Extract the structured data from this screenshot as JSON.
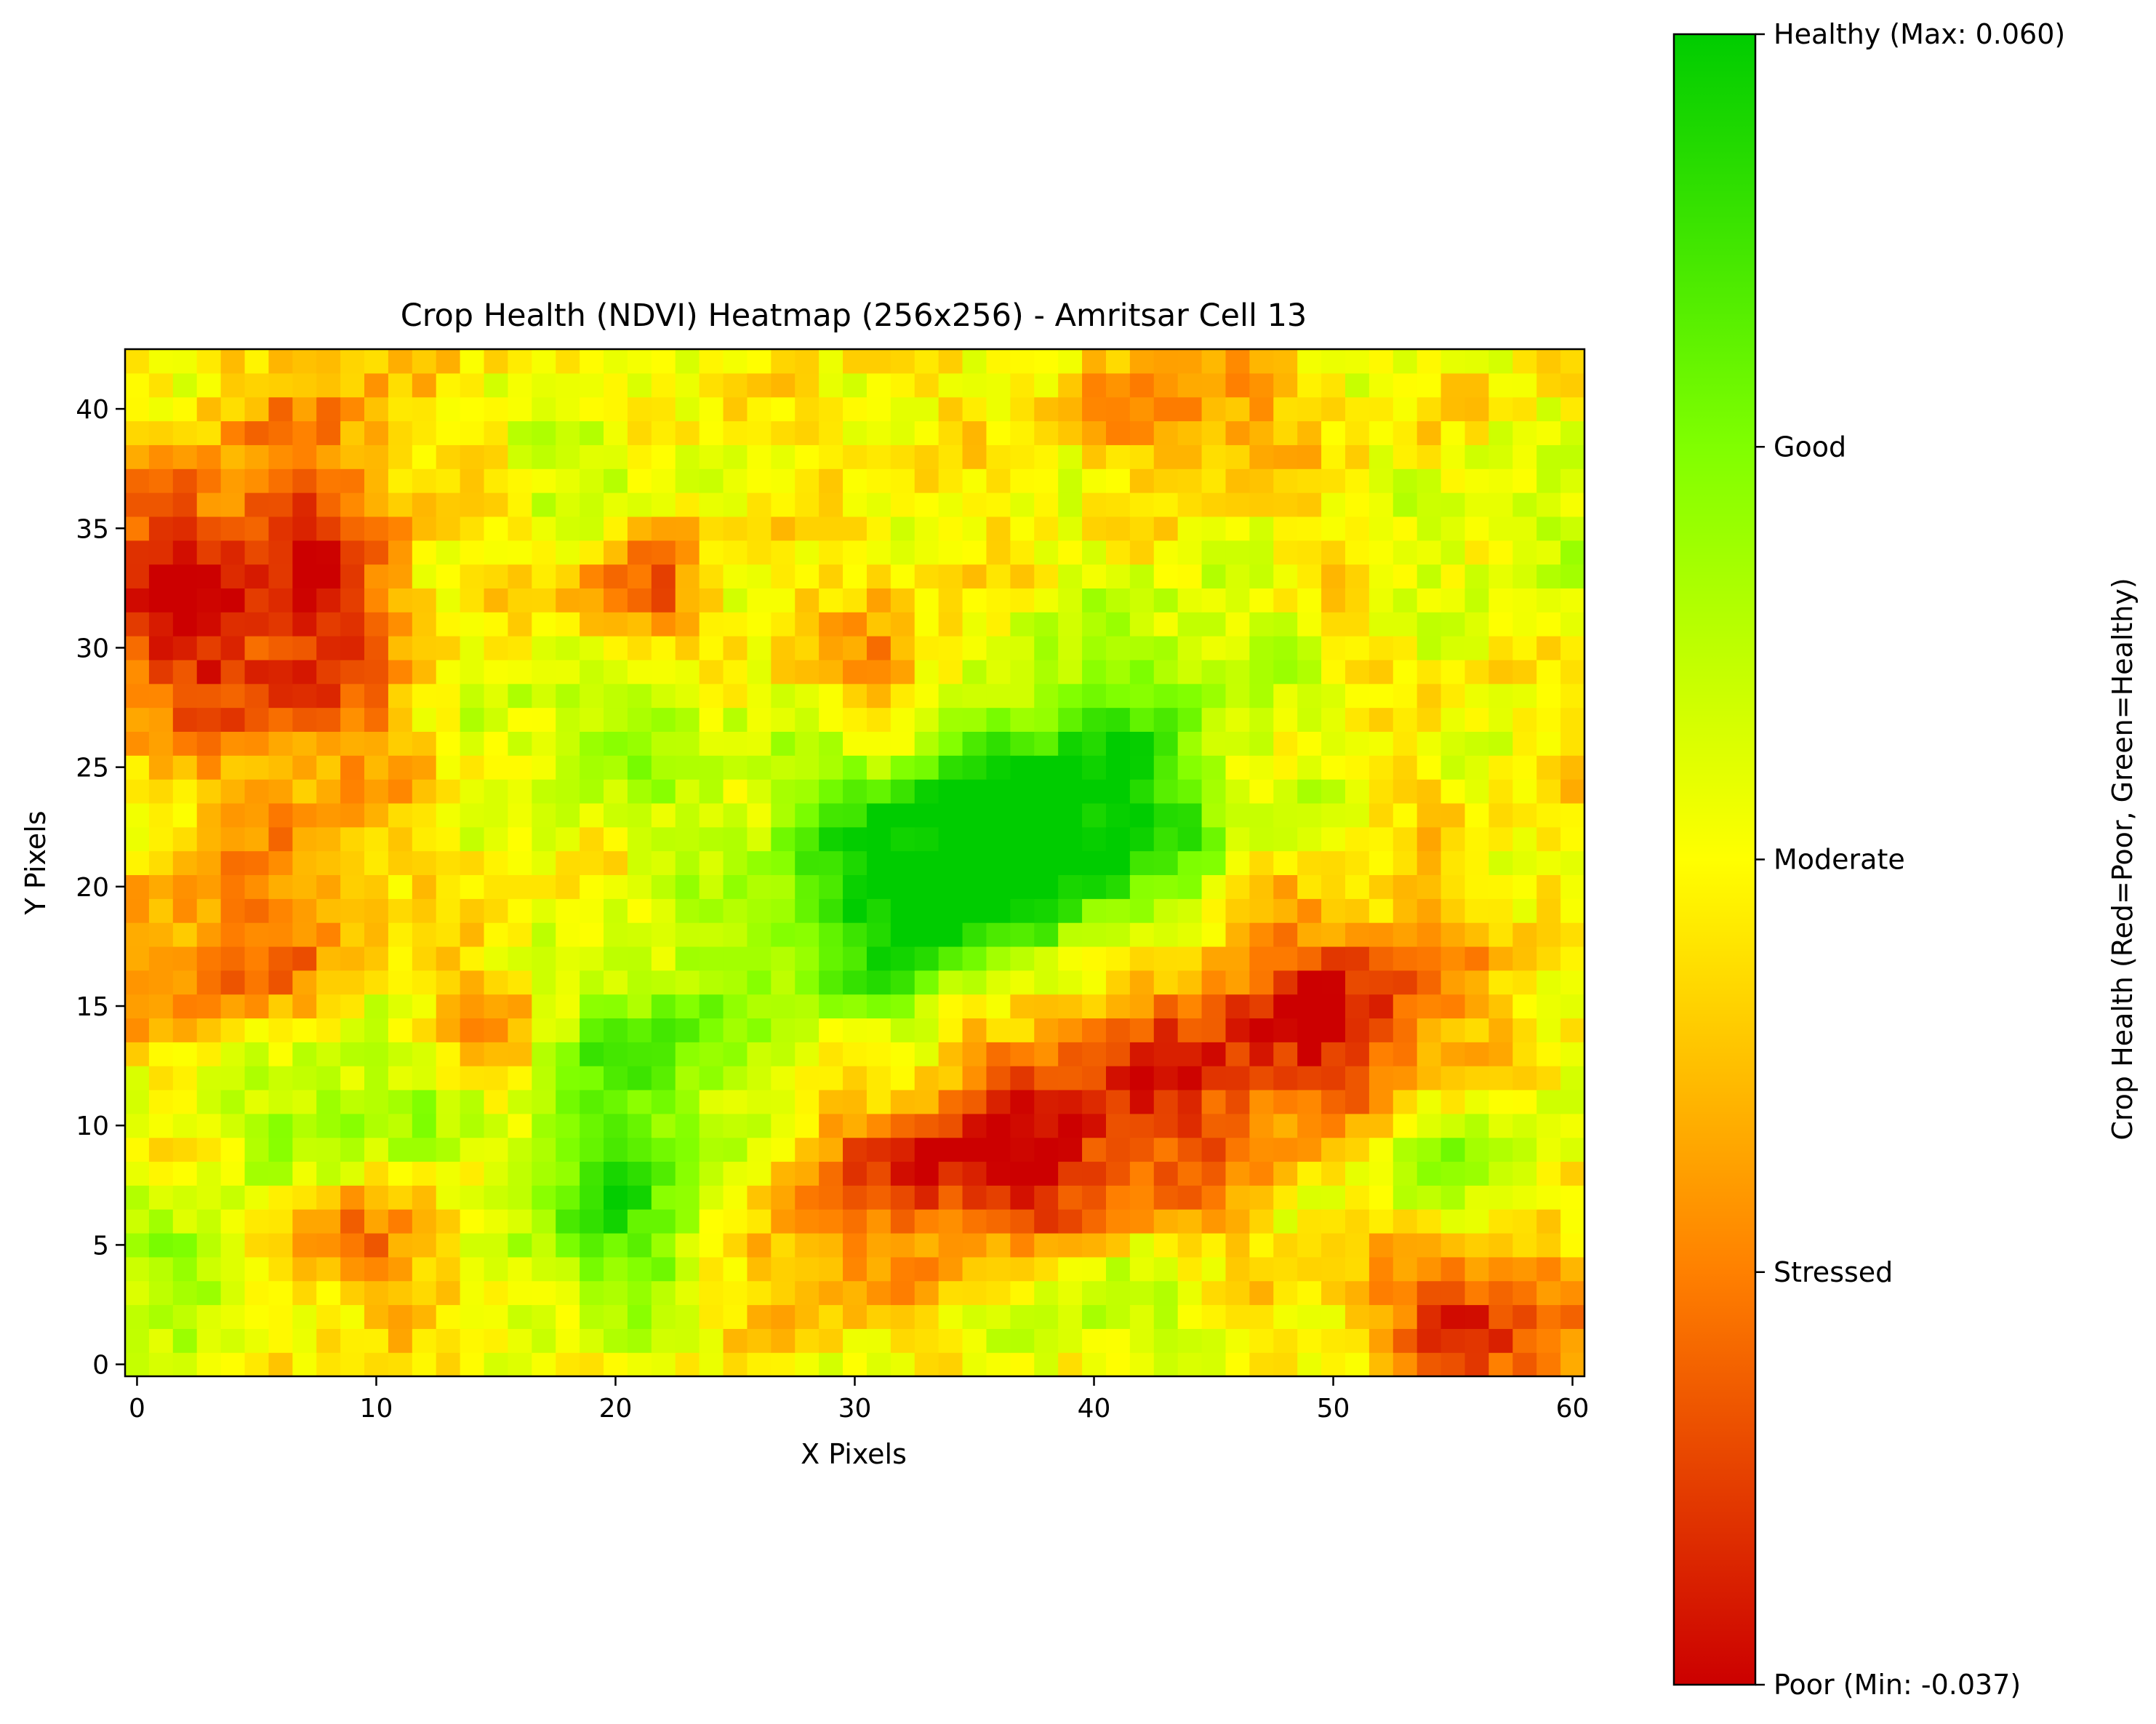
{
  "chart_data": {
    "type": "heatmap",
    "title": "Crop Health (NDVI) Heatmap (256x256) - Amritsar Cell 13",
    "xlabel": "X Pixels",
    "ylabel": "Y Pixels",
    "xlim": [
      -0.5,
      60.5
    ],
    "ylim": [
      -0.5,
      42.5
    ],
    "x_ticks": [
      0,
      10,
      20,
      30,
      40,
      50,
      60
    ],
    "y_ticks": [
      0,
      5,
      10,
      15,
      20,
      25,
      30,
      35,
      40
    ],
    "grid": false,
    "colormap": {
      "stops": [
        "#cc0000",
        "#ff8000",
        "#ffff00",
        "#80ff00",
        "#00cc00"
      ],
      "vmin": -0.037,
      "vmax": 0.06
    },
    "colorbar": {
      "label": "Crop Health (Red=Poor, Green=Healthy)",
      "ticks": [
        {
          "fraction": 0.0,
          "label": "Poor (Min: -0.037)"
        },
        {
          "fraction": 0.25,
          "label": "Stressed"
        },
        {
          "fraction": 0.5,
          "label": "Moderate"
        },
        {
          "fraction": 0.75,
          "label": "Good"
        },
        {
          "fraction": 1.0,
          "label": "Healthy (Max: 0.060)"
        }
      ]
    },
    "regions": [
      {
        "x": 36,
        "y": 22,
        "sx": 5.5,
        "sy": 3.5,
        "level": 0.97
      },
      {
        "x": 31,
        "y": 18,
        "sx": 4,
        "sy": 4,
        "level": 0.8
      },
      {
        "x": 41,
        "y": 24,
        "sx": 3.5,
        "sy": 3,
        "level": 0.75
      },
      {
        "x": 20,
        "y": 6,
        "sx": 3,
        "sy": 3,
        "level": 0.85
      },
      {
        "x": 21,
        "y": 13,
        "sx": 3,
        "sy": 3,
        "level": 0.8
      },
      {
        "x": 8,
        "y": 11,
        "sx": 4,
        "sy": 2.5,
        "level": 0.72
      },
      {
        "x": 2,
        "y": 4,
        "sx": 2.5,
        "sy": 2,
        "level": 0.72
      },
      {
        "x": 20,
        "y": 27,
        "sx": 4,
        "sy": 3,
        "level": 0.68
      },
      {
        "x": 42,
        "y": 30,
        "sx": 5,
        "sy": 2.5,
        "level": 0.62
      },
      {
        "x": 19,
        "y": 38,
        "sx": 2,
        "sy": 2,
        "level": 0.65
      },
      {
        "x": 55,
        "y": 8,
        "sx": 3,
        "sy": 2.5,
        "level": 0.7
      },
      {
        "x": 41,
        "y": 2,
        "sx": 3,
        "sy": 2,
        "level": 0.65
      },
      {
        "x": 58,
        "y": 34,
        "sx": 3,
        "sy": 3,
        "level": 0.6
      },
      {
        "x": 2,
        "y": 32,
        "sx": 3,
        "sy": 4,
        "level": 0.0
      },
      {
        "x": 8,
        "y": 32,
        "sx": 2.5,
        "sy": 7,
        "level": 0.15
      },
      {
        "x": 4,
        "y": 17,
        "sx": 3,
        "sy": 3,
        "level": 0.2
      },
      {
        "x": 40,
        "y": 11,
        "sx": 6,
        "sy": 3.5,
        "level": 0.1
      },
      {
        "x": 34,
        "y": 8,
        "sx": 4,
        "sy": 2,
        "level": 0.15
      },
      {
        "x": 50,
        "y": 15,
        "sx": 4,
        "sy": 3,
        "level": 0.08
      },
      {
        "x": 56,
        "y": 2,
        "sx": 3,
        "sy": 2.5,
        "level": 0.05
      },
      {
        "x": 21,
        "y": 32,
        "sx": 2,
        "sy": 2,
        "level": 0.15
      },
      {
        "x": 9,
        "y": 5,
        "sx": 3,
        "sy": 2,
        "level": 0.25
      },
      {
        "x": 44,
        "y": 40,
        "sx": 3,
        "sy": 2,
        "level": 0.25
      },
      {
        "x": 31,
        "y": 29,
        "sx": 3,
        "sy": 2,
        "level": 0.25
      },
      {
        "x": 15,
        "y": 14,
        "sx": 2,
        "sy": 2,
        "level": 0.3
      },
      {
        "x": 28,
        "y": 4,
        "sx": 3,
        "sy": 2,
        "level": 0.3
      }
    ]
  }
}
